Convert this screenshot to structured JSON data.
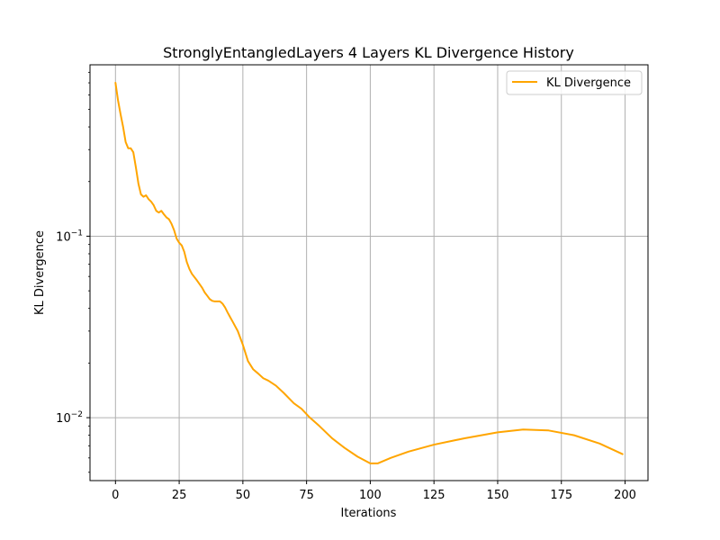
{
  "chart_data": {
    "type": "line",
    "title": "StronglyEntangledLayers 4 Layers KL Divergence History",
    "xlabel": "Iterations",
    "ylabel": "KL Divergence",
    "xlim": [
      -10,
      209
    ],
    "ylim": [
      0.0045,
      0.88
    ],
    "yscale": "log",
    "grid": true,
    "legend_position": "upper-right",
    "x_ticks": [
      0,
      25,
      50,
      75,
      100,
      125,
      150,
      175,
      200
    ],
    "x_tick_labels": [
      "0",
      "25",
      "50",
      "75",
      "100",
      "125",
      "150",
      "175",
      "200"
    ],
    "y_major_ticks": [
      0.01,
      0.1
    ],
    "y_tick_label_parts": [
      {
        "base": "10",
        "exp": "−2"
      },
      {
        "base": "10",
        "exp": "−1"
      }
    ],
    "y_minor_ticks": [
      0.005,
      0.006,
      0.007,
      0.008,
      0.009,
      0.02,
      0.03,
      0.04,
      0.05,
      0.06,
      0.07,
      0.08,
      0.09,
      0.2,
      0.3,
      0.4,
      0.5,
      0.6,
      0.7,
      0.8
    ],
    "series": [
      {
        "name": "KL Divergence",
        "color": "#ffa500",
        "x": [
          0,
          1,
          2,
          3,
          4,
          5,
          6,
          7,
          8,
          9,
          10,
          11,
          12,
          13,
          14,
          15,
          16,
          17,
          18,
          19,
          20,
          21,
          22,
          23,
          24,
          25,
          26,
          27,
          28,
          29,
          30,
          32,
          34,
          35,
          36,
          37,
          38,
          39,
          40,
          41,
          42,
          43,
          44,
          45,
          46,
          48,
          50,
          52,
          54,
          56,
          58,
          60,
          63,
          66,
          70,
          73,
          76,
          80,
          85,
          90,
          95,
          100,
          103,
          108,
          115,
          125,
          137,
          150,
          160,
          170,
          180,
          190,
          199
        ],
        "y": [
          0.7,
          0.56,
          0.47,
          0.4,
          0.33,
          0.305,
          0.305,
          0.29,
          0.24,
          0.195,
          0.17,
          0.165,
          0.168,
          0.16,
          0.155,
          0.148,
          0.138,
          0.135,
          0.138,
          0.132,
          0.127,
          0.124,
          0.117,
          0.108,
          0.097,
          0.092,
          0.089,
          0.082,
          0.072,
          0.066,
          0.062,
          0.057,
          0.052,
          0.049,
          0.047,
          0.045,
          0.044,
          0.0437,
          0.0437,
          0.0437,
          0.0425,
          0.0405,
          0.038,
          0.0358,
          0.0338,
          0.03,
          0.0252,
          0.0205,
          0.0185,
          0.0175,
          0.0165,
          0.016,
          0.015,
          0.0137,
          0.012,
          0.0112,
          0.0101,
          0.009,
          0.0077,
          0.0068,
          0.0061,
          0.0056,
          0.0056,
          0.006,
          0.0065,
          0.0071,
          0.0077,
          0.0083,
          0.0086,
          0.0085,
          0.008,
          0.0072,
          0.0063
        ]
      }
    ]
  }
}
